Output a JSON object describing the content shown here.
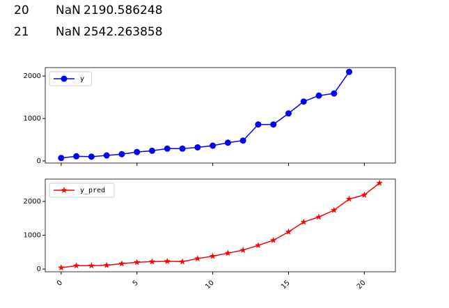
{
  "output_rows": [
    [
      "20",
      "NaN",
      "2190.586248"
    ],
    [
      "21",
      "NaN",
      "2542.263858"
    ]
  ],
  "chart_data": [
    {
      "type": "line",
      "legend": "upper left",
      "x": [
        0,
        1,
        2,
        3,
        4,
        5,
        6,
        7,
        8,
        9,
        10,
        11,
        12,
        13,
        14,
        15,
        16,
        17,
        18,
        19
      ],
      "series": [
        {
          "name": "y",
          "color": "#0000ff",
          "marker": "circle",
          "values": [
            70,
            110,
            100,
            130,
            160,
            210,
            240,
            290,
            290,
            320,
            360,
            430,
            480,
            860,
            860,
            1120,
            1400,
            1540,
            1590,
            2100
          ]
        }
      ],
      "xlim": [
        -1.05,
        22.05
      ],
      "ylim": [
        -50,
        2200
      ],
      "yticks": [
        0,
        1000,
        2000
      ]
    },
    {
      "type": "line",
      "legend": "upper left",
      "x": [
        0,
        1,
        2,
        3,
        4,
        5,
        6,
        7,
        8,
        9,
        10,
        11,
        12,
        13,
        14,
        15,
        16,
        17,
        18,
        19,
        20,
        21
      ],
      "series": [
        {
          "name": "y_pred",
          "color": "#ff0000",
          "marker": "star",
          "values": [
            40,
            100,
            100,
            110,
            160,
            200,
            220,
            230,
            220,
            310,
            380,
            470,
            560,
            700,
            850,
            1100,
            1390,
            1540,
            1740,
            2070,
            2190.586248,
            2542.263858
          ]
        }
      ],
      "xlim": [
        -1.05,
        22.05
      ],
      "ylim": [
        -80,
        2660
      ],
      "yticks": [
        0,
        1000,
        2000
      ],
      "xticks": [
        0,
        5,
        10,
        15,
        20
      ]
    }
  ]
}
